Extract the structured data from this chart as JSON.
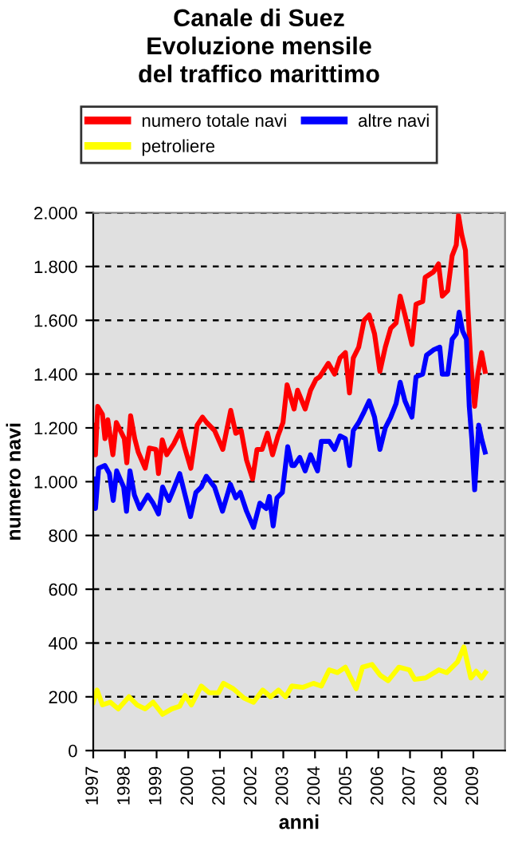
{
  "chart_data": {
    "type": "line",
    "title": "Canale di Suez\nEvoluzione mensile\ndel traffico marittimo",
    "xlabel": "anni",
    "ylabel": "numero navi",
    "xlim": [
      1997,
      2010
    ],
    "xticks": [
      1997,
      1998,
      1999,
      2000,
      2001,
      2002,
      2003,
      2004,
      2005,
      2006,
      2007,
      2008,
      2009
    ],
    "ylim": [
      0,
      2000
    ],
    "yticks": [
      0,
      200,
      400,
      600,
      800,
      {
        "value": 1000,
        "label": "1.000"
      },
      {
        "value": 1200,
        "label": "1.200"
      },
      {
        "value": 1400,
        "label": "1.400"
      },
      {
        "value": 1600,
        "label": "1.600"
      },
      {
        "value": 1800,
        "label": "1.800"
      },
      {
        "value": 2000,
        "label": "2.000"
      }
    ],
    "grid": "y",
    "legend": "top",
    "line_style": "solid",
    "marker": "none",
    "series": [
      {
        "name": "numero totale navi",
        "color": "#ff0000",
        "x": [
          1997.0,
          1997.07,
          1997.14,
          1997.29,
          1997.37,
          1997.46,
          1997.62,
          1997.73,
          1997.98,
          1998.06,
          1998.18,
          1998.31,
          1998.42,
          1998.64,
          1998.77,
          1998.98,
          1999.06,
          1999.18,
          1999.32,
          1999.54,
          1999.75,
          1999.88,
          2000.08,
          2000.28,
          2000.45,
          2000.58,
          2000.83,
          2001.09,
          2001.34,
          2001.5,
          2001.67,
          2001.84,
          2002.03,
          2002.17,
          2002.33,
          2002.5,
          2002.66,
          2002.83,
          2002.99,
          2003.12,
          2003.34,
          2003.45,
          2003.52,
          2003.69,
          2003.86,
          2004.03,
          2004.15,
          2004.42,
          2004.62,
          2004.79,
          2004.96,
          2005.09,
          2005.21,
          2005.38,
          2005.55,
          2005.71,
          2005.88,
          2006.05,
          2006.22,
          2006.39,
          2006.56,
          2006.69,
          2006.84,
          2007.06,
          2007.19,
          2007.4,
          2007.48,
          2007.74,
          2007.9,
          2008.02,
          2008.19,
          2008.33,
          2008.46,
          2008.53,
          2008.63,
          2008.75,
          2008.83,
          2008.92,
          2009.04,
          2009.14,
          2009.26,
          2009.37
        ],
        "values": [
          1210,
          1100,
          1280,
          1250,
          1160,
          1230,
          1100,
          1220,
          1160,
          1070,
          1245,
          1160,
          1110,
          1050,
          1125,
          1120,
          1030,
          1155,
          1100,
          1140,
          1190,
          1130,
          1050,
          1210,
          1240,
          1220,
          1190,
          1120,
          1265,
          1180,
          1190,
          1080,
          1010,
          1120,
          1120,
          1180,
          1100,
          1170,
          1220,
          1360,
          1270,
          1340,
          1320,
          1270,
          1340,
          1380,
          1390,
          1440,
          1400,
          1460,
          1480,
          1330,
          1460,
          1500,
          1600,
          1620,
          1550,
          1410,
          1500,
          1570,
          1590,
          1690,
          1620,
          1510,
          1660,
          1670,
          1760,
          1780,
          1810,
          1690,
          1710,
          1840,
          1880,
          1990,
          1920,
          1860,
          1640,
          1440,
          1280,
          1400,
          1480,
          1410
        ]
      },
      {
        "name": "petroliere",
        "color": "#ffff00",
        "x": [
          1997.0,
          1997.12,
          1997.29,
          1997.54,
          1997.79,
          1998.13,
          1998.38,
          1998.64,
          1998.89,
          1999.19,
          1999.48,
          1999.73,
          1999.9,
          2000.1,
          2000.41,
          2000.66,
          2000.95,
          2001.11,
          2001.42,
          2001.76,
          2002.06,
          2002.35,
          2002.6,
          2002.85,
          2003.07,
          2003.27,
          2003.61,
          2003.95,
          2004.2,
          2004.45,
          2004.71,
          2004.96,
          2005.3,
          2005.5,
          2005.8,
          2006.06,
          2006.31,
          2006.65,
          2006.98,
          2007.15,
          2007.49,
          2007.91,
          2008.16,
          2008.5,
          2008.7,
          2008.92,
          2009.09,
          2009.26,
          2009.38
        ],
        "values": [
          180,
          225,
          170,
          180,
          155,
          200,
          170,
          155,
          180,
          135,
          155,
          165,
          205,
          170,
          240,
          215,
          215,
          250,
          230,
          195,
          180,
          225,
          200,
          225,
          200,
          240,
          235,
          250,
          240,
          300,
          290,
          310,
          230,
          310,
          320,
          280,
          260,
          310,
          300,
          265,
          270,
          300,
          290,
          330,
          385,
          270,
          295,
          270,
          290
        ]
      },
      {
        "name": "altre navi",
        "color": "#0000ff",
        "x": [
          1997.0,
          1997.07,
          1997.17,
          1997.37,
          1997.51,
          1997.63,
          1997.74,
          1997.96,
          1998.05,
          1998.16,
          1998.3,
          1998.47,
          1998.72,
          1998.89,
          1999.06,
          1999.19,
          1999.39,
          1999.53,
          1999.73,
          1999.9,
          2000.07,
          2000.24,
          2000.41,
          2000.57,
          2000.83,
          2001.08,
          2001.33,
          2001.5,
          2001.64,
          2001.84,
          2002.06,
          2002.26,
          2002.46,
          2002.56,
          2002.68,
          2002.8,
          2002.97,
          2003.14,
          2003.27,
          2003.35,
          2003.52,
          2003.69,
          2003.86,
          2004.08,
          2004.2,
          2004.45,
          2004.62,
          2004.79,
          2004.96,
          2005.09,
          2005.21,
          2005.38,
          2005.55,
          2005.71,
          2005.88,
          2006.05,
          2006.22,
          2006.39,
          2006.56,
          2006.69,
          2006.84,
          2007.06,
          2007.19,
          2007.4,
          2007.52,
          2007.74,
          2007.94,
          2008.02,
          2008.19,
          2008.33,
          2008.46,
          2008.55,
          2008.66,
          2008.78,
          2008.87,
          2008.95,
          2009.04,
          2009.17,
          2009.26,
          2009.37
        ],
        "values": [
          1010,
          900,
          1050,
          1060,
          1030,
          930,
          1040,
          980,
          890,
          1040,
          950,
          900,
          950,
          920,
          880,
          980,
          930,
          970,
          1030,
          950,
          870,
          960,
          980,
          1020,
          980,
          890,
          990,
          940,
          960,
          890,
          830,
          920,
          900,
          945,
          835,
          940,
          960,
          1130,
          1060,
          1060,
          1090,
          1040,
          1100,
          1040,
          1150,
          1150,
          1120,
          1170,
          1160,
          1060,
          1190,
          1220,
          1260,
          1300,
          1240,
          1120,
          1200,
          1240,
          1290,
          1370,
          1300,
          1240,
          1390,
          1400,
          1470,
          1490,
          1500,
          1400,
          1400,
          1530,
          1550,
          1630,
          1560,
          1530,
          1280,
          1160,
          970,
          1210,
          1160,
          1110
        ]
      }
    ]
  }
}
